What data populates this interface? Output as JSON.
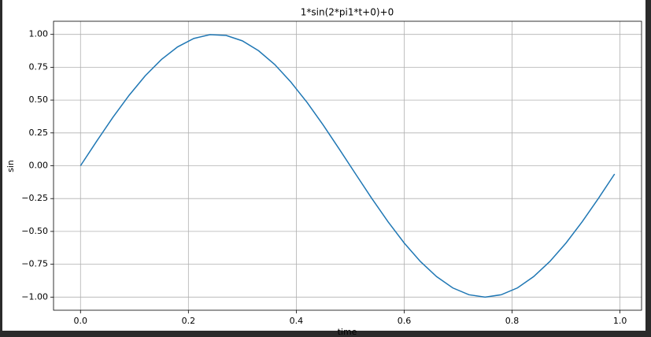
{
  "chart_data": {
    "type": "line",
    "title": "1*sin(2*pi1*t+0)+0",
    "xlabel": "time",
    "ylabel": "sin",
    "x": [
      0,
      0.03,
      0.06,
      0.09,
      0.12,
      0.15,
      0.18,
      0.21,
      0.24,
      0.27,
      0.3,
      0.33,
      0.36,
      0.39,
      0.42,
      0.45,
      0.48,
      0.51,
      0.54,
      0.57,
      0.6,
      0.63,
      0.66,
      0.69,
      0.72,
      0.75,
      0.78,
      0.81,
      0.84,
      0.87,
      0.9,
      0.93,
      0.96,
      0.99
    ],
    "series": [
      {
        "color": "#1f77b4",
        "values": [
          0,
          0.187,
          0.368,
          0.536,
          0.685,
          0.809,
          0.905,
          0.969,
          0.998,
          0.992,
          0.951,
          0.876,
          0.771,
          0.637,
          0.482,
          0.309,
          0.125,
          -0.063,
          -0.249,
          -0.426,
          -0.588,
          -0.729,
          -0.844,
          -0.93,
          -0.982,
          -1,
          -0.982,
          -0.93,
          -0.844,
          -0.729,
          -0.588,
          -0.426,
          -0.249,
          -0.063
        ]
      }
    ],
    "xlim": [
      -0.05,
      1.04
    ],
    "xticks": [
      {
        "value": 0,
        "label": "0.0"
      },
      0.2,
      0.4,
      0.6,
      0.8,
      {
        "value": 1,
        "label": "1.0"
      }
    ],
    "ylim": [
      -1.1,
      1.1
    ],
    "yticks": [
      {
        "value": -1,
        "label": "−1.00"
      },
      {
        "value": -0.75,
        "label": "−0.75"
      },
      {
        "value": -0.5,
        "label": "−0.50"
      },
      {
        "value": -0.25,
        "label": "−0.25"
      },
      {
        "value": 0,
        "label": "0.00"
      },
      {
        "value": 0.25,
        "label": "0.25"
      },
      {
        "value": 0.5,
        "label": "0.50"
      },
      {
        "value": 0.75,
        "label": "0.75"
      },
      {
        "value": 1,
        "label": "1.00"
      }
    ],
    "grid": true
  }
}
